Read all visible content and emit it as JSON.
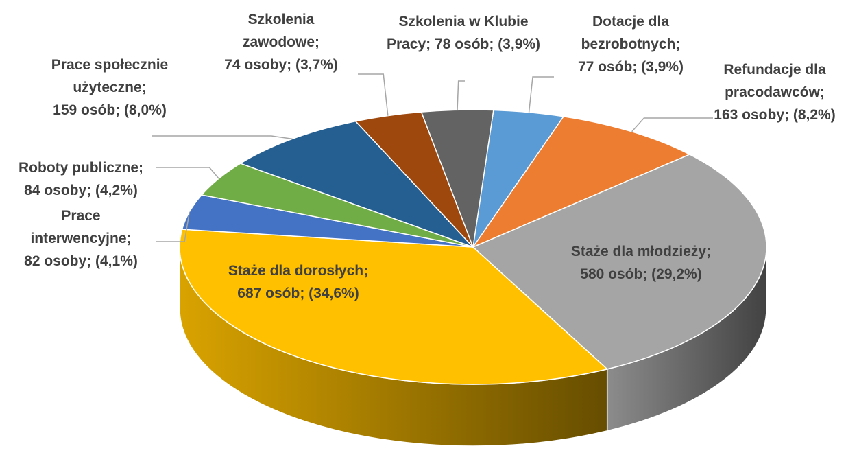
{
  "chart_data": {
    "type": "pie3d",
    "label_separator": ";",
    "categories": [
      "Dotacje dla bezrobotnych",
      "Refundacje dla pracodawców",
      "Staże dla młodzieży",
      "Staże dla dorosłych",
      "Prace interwencyjne",
      "Roboty publiczne",
      "Prace społecznie użyteczne",
      "Szkolenia zawodowe",
      "Szkolenia w Klubie Pracy"
    ],
    "values": [
      77,
      163,
      580,
      687,
      82,
      84,
      159,
      74,
      78
    ],
    "value_labels": [
      "77 osób; (3,9%)",
      "163 osoby; (8,2%)",
      "580 osób; (29,2%)",
      "687 osób; (34,6%)",
      "82 osoby; (4,1%)",
      "84 osoby; (4,2%)",
      "159 osób; (8,0%)",
      "74 osoby; (3,7%)",
      "78 osób; (3,9%)"
    ],
    "colors": [
      "#5b9bd5",
      "#ed7d31",
      "#a5a5a5",
      "#ffc000",
      "#4472c4",
      "#70ad47",
      "#255e91",
      "#9e480e",
      "#636363"
    ]
  }
}
